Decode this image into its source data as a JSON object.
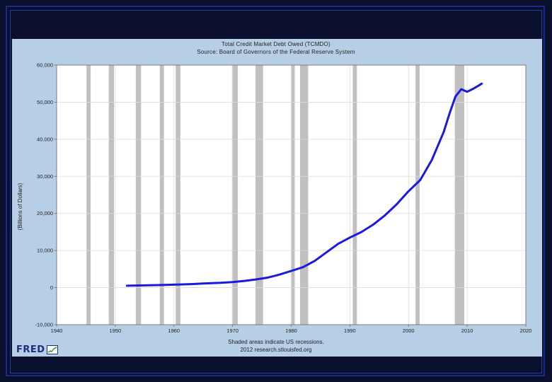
{
  "chart_data": {
    "type": "line",
    "title": "Total Credit Market Debt Owed (TCMDO)",
    "subtitle": "Source: Board of Governors of the Federal Reserve System",
    "ylabel": "(Billions of Dollars)",
    "xlabel": "",
    "xlim": [
      1940,
      2020
    ],
    "ylim": [
      -10000,
      60000
    ],
    "x_ticks": [
      1940,
      1950,
      1960,
      1970,
      1980,
      1990,
      2000,
      2010,
      2020
    ],
    "y_ticks": [
      -10000,
      0,
      10000,
      20000,
      30000,
      40000,
      50000,
      60000
    ],
    "x_tick_labels": [
      "1940",
      "1950",
      "1960",
      "1970",
      "1980",
      "1990",
      "2000",
      "2010",
      "2020"
    ],
    "y_tick_labels": [
      "-10,000",
      "0",
      "10,000",
      "20,000",
      "30,000",
      "40,000",
      "50,000",
      "60,000"
    ],
    "grid": true,
    "line_color": "#1a1adf",
    "recession_color": "#c0c0c0",
    "recessions": [
      [
        1945.1,
        1945.8
      ],
      [
        1948.9,
        1949.8
      ],
      [
        1953.5,
        1954.4
      ],
      [
        1957.6,
        1958.3
      ],
      [
        1960.3,
        1961.1
      ],
      [
        1969.9,
        1970.9
      ],
      [
        1973.9,
        1975.2
      ],
      [
        1980.0,
        1980.6
      ],
      [
        1981.5,
        1982.9
      ],
      [
        1990.5,
        1991.2
      ],
      [
        2001.2,
        2001.9
      ],
      [
        2007.9,
        2009.5
      ]
    ],
    "series": [
      {
        "x": [
          1952,
          1955,
          1958,
          1960,
          1963,
          1965,
          1968,
          1970,
          1972,
          1974,
          1976,
          1978,
          1980,
          1982,
          1984,
          1986,
          1988,
          1990,
          1992,
          1994,
          1996,
          1998,
          2000,
          2002,
          2004,
          2006,
          2007,
          2008,
          2009,
          2010,
          2011,
          2012,
          2012.5
        ],
        "y": [
          500,
          600,
          700,
          800,
          950,
          1100,
          1300,
          1500,
          1800,
          2200,
          2700,
          3500,
          4500,
          5500,
          7200,
          9500,
          11800,
          13500,
          15000,
          17000,
          19500,
          22500,
          26000,
          29000,
          34500,
          42000,
          47000,
          51500,
          53500,
          52800,
          53600,
          54500,
          55000
        ]
      }
    ]
  },
  "footer": {
    "note": "Shaded areas indicate US recessions.",
    "credit": "2012 research.stlouisfed.org"
  },
  "logo": {
    "text": "FRED"
  }
}
